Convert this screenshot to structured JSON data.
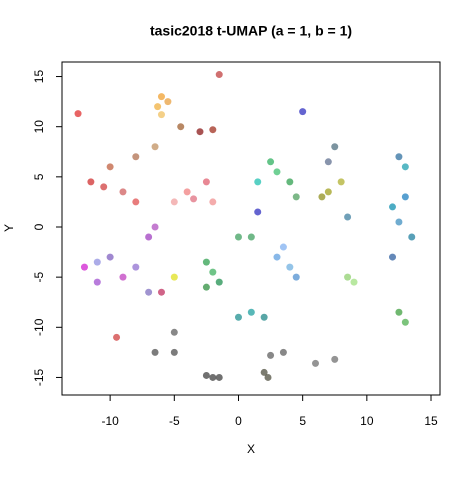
{
  "chart_data": {
    "type": "scatter",
    "title": "tasic2018 t-UMAP (a = 1, b = 1)",
    "xlabel": "X",
    "ylabel": "Y",
    "xlim": [
      -13.75,
      15.7
    ],
    "ylim": [
      -16.75,
      16.45
    ],
    "xticks": [
      -10,
      -5,
      0,
      5,
      10,
      15
    ],
    "yticks": [
      -15,
      -10,
      -5,
      0,
      5,
      10,
      15
    ],
    "grid": false,
    "x": [
      -6,
      -6.3,
      -5.5,
      -6,
      -4.5,
      -3,
      -2,
      -10,
      -8,
      -6.5,
      -11.5,
      -10.5,
      -9,
      -8,
      -4,
      -2.5,
      -2,
      -3.5,
      -5,
      -12,
      -11,
      -10,
      -9,
      -11,
      -8,
      -7,
      -7,
      -6.5,
      -5,
      -6,
      -2.5,
      -2,
      -1.5,
      -2.5,
      0,
      1,
      0,
      1,
      2,
      2.5,
      3,
      4,
      4.5,
      1.5,
      7,
      8,
      6.5,
      7.5,
      7,
      12,
      13,
      13,
      12.5,
      12.5,
      13.5,
      12,
      3,
      4,
      4.5,
      3.5,
      9,
      8.5,
      12.5,
      13,
      8.5,
      5,
      1.5,
      -12.5,
      -1.5,
      -9.5,
      -5,
      -6.5,
      -5,
      -2.5,
      -2,
      -1.5,
      2,
      2.3,
      3.5,
      2.5,
      7.5,
      6
    ],
    "values": [
      13,
      12,
      12.5,
      11.2,
      10,
      9.5,
      9.7,
      6,
      7,
      8,
      4.5,
      4,
      3.5,
      2.5,
      3.5,
      4.5,
      2.5,
      2.8,
      2.5,
      -4,
      -3.5,
      -3,
      -5,
      -5.5,
      -4,
      -6.5,
      -1,
      0,
      -5,
      -6.5,
      -3.5,
      -4.5,
      -5.5,
      -6,
      -1,
      -1,
      -9,
      -8.5,
      -9,
      6.5,
      5.5,
      4.5,
      3,
      4.5,
      3.5,
      4.5,
      3,
      8,
      6.5,
      2,
      3,
      6,
      7,
      0.5,
      -1,
      -3,
      -3,
      -4,
      -5,
      -2,
      -5.5,
      -5,
      -8.5,
      -9.5,
      1,
      11.5,
      1.5,
      11.3,
      15.2,
      -11,
      -10.5,
      -12.5,
      -12.5,
      -14.8,
      -15,
      -15,
      -14.5,
      -15,
      -12.5,
      -12.8,
      -13.2,
      -13.6
    ],
    "colors": [
      "#f0a030",
      "#f0b040",
      "#e8a040",
      "#f0c060",
      "#a06030",
      "#8b1a1a",
      "#a03020",
      "#c06040",
      "#b07050",
      "#c09060",
      "#d03030",
      "#d04040",
      "#d06060",
      "#e05050",
      "#f08080",
      "#e06070",
      "#f09090",
      "#e07080",
      "#f0a0a0",
      "#d020d0",
      "#9090e0",
      "#8060c0",
      "#c040c0",
      "#a050d0",
      "#9070d0",
      "#8070c0",
      "#a040c0",
      "#b050c0",
      "#e0e020",
      "#c03060",
      "#30a050",
      "#40b060",
      "#209050",
      "#309040",
      "#40a060",
      "#40a060",
      "#209090",
      "#20a0a0",
      "#208888",
      "#30b060",
      "#40c070",
      "#30a050",
      "#50a060",
      "#20c0b0",
      "#a0a020",
      "#b0b030",
      "#909020",
      "#507080",
      "#607090",
      "#1090b0",
      "#2080c0",
      "#20a0b0",
      "#3070a0",
      "#4090c0",
      "#2080a0",
      "#3060a0",
      "#60a0e0",
      "#70b0e0",
      "#5090d0",
      "#80b0f0",
      "#a0e080",
      "#90d070",
      "#40a040",
      "#50b050",
      "#4080a0",
      "#3030c0",
      "#3030c0",
      "#e03030",
      "#c04040",
      "#d04040",
      "#606060",
      "#505050",
      "#505050",
      "#404040",
      "#404040",
      "#404040",
      "#505040",
      "#505040",
      "#606060",
      "#606060",
      "#707070",
      "#707070"
    ]
  }
}
